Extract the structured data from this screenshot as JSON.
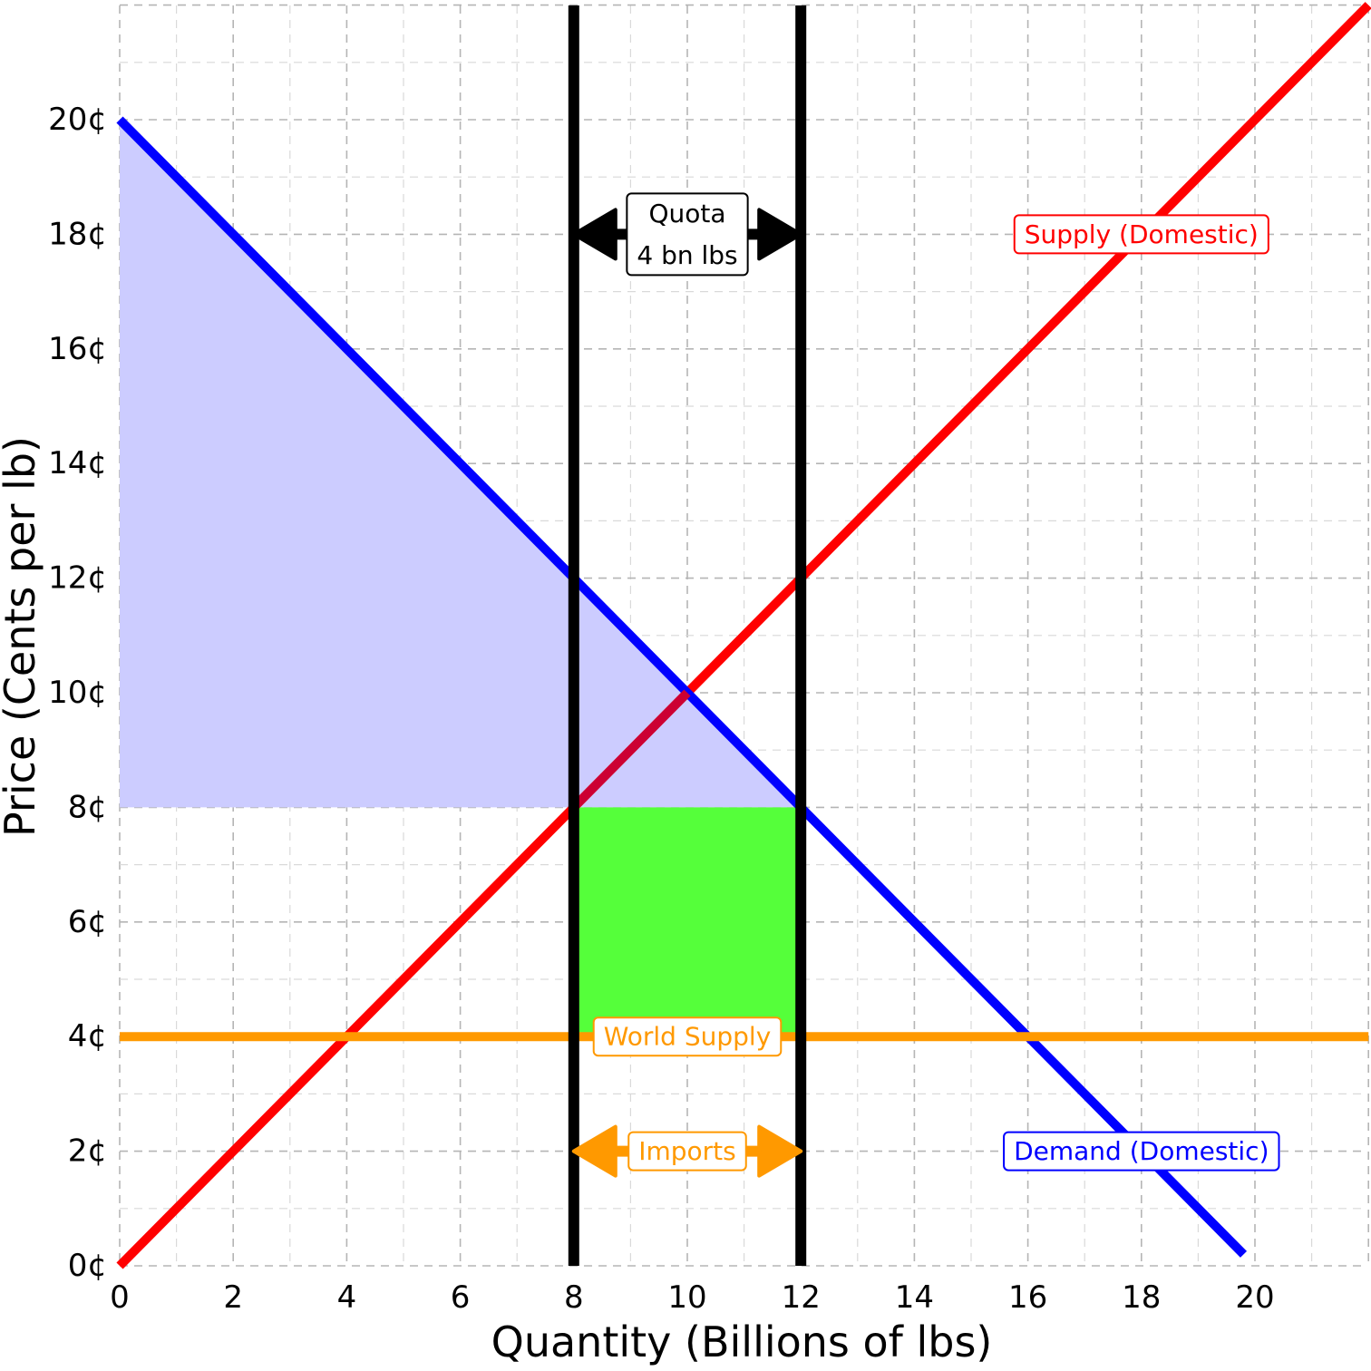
{
  "chart_data": {
    "type": "line",
    "xlabel": "Quantity (Billions of lbs)",
    "ylabel": "Price (Cents per lb)",
    "xlim": [
      0,
      22
    ],
    "ylim": [
      0,
      22
    ],
    "x_ticks": [
      "0",
      "2",
      "4",
      "6",
      "8",
      "10",
      "12",
      "14",
      "16",
      "18",
      "20"
    ],
    "y_ticks": [
      "0¢",
      "2¢",
      "4¢",
      "6¢",
      "8¢",
      "10¢",
      "12¢",
      "14¢",
      "16¢",
      "18¢",
      "20¢"
    ],
    "grid": true,
    "series": [
      {
        "name": "Supply (Domestic)",
        "color": "#ff0000",
        "points": [
          [
            0,
            0
          ],
          [
            22,
            22
          ]
        ]
      },
      {
        "name": "Demand (Domestic)",
        "color": "#0000ff",
        "points": [
          [
            0,
            20
          ],
          [
            19.8,
            0.2
          ]
        ]
      },
      {
        "name": "World Supply",
        "color": "#ff9900",
        "points": [
          [
            0,
            4
          ],
          [
            22,
            4
          ]
        ]
      }
    ],
    "vlines": [
      {
        "x": 8,
        "color": "#000000"
      },
      {
        "x": 12,
        "color": "#000000"
      }
    ],
    "shaded_regions": [
      {
        "color": "#ccccff",
        "polygon": [
          [
            0,
            20
          ],
          [
            12,
            8
          ],
          [
            0,
            8
          ]
        ]
      },
      {
        "color": "#55ff3a",
        "polygon": [
          [
            8,
            4
          ],
          [
            12,
            4
          ],
          [
            12,
            8
          ],
          [
            8,
            8
          ]
        ]
      }
    ],
    "annotations": [
      {
        "text": "Supply (Domestic)",
        "x": 18,
        "y": 18,
        "color": "#ff0000"
      },
      {
        "text": "Demand (Domestic)",
        "x": 18,
        "y": 2,
        "color": "#0000ff"
      },
      {
        "text": "World Supply",
        "x": 10,
        "y": 4,
        "color": "#ff9900"
      },
      {
        "text": "Imports",
        "x": 10,
        "y": 2,
        "color": "#ff9900"
      },
      {
        "text_lines": [
          "Quota",
          "4 bn lbs"
        ],
        "x": 10,
        "y": 18,
        "color": "#000000"
      }
    ],
    "arrows": [
      {
        "from": [
          8,
          18
        ],
        "to": [
          12,
          18
        ],
        "color": "#000000",
        "both_ends": true
      },
      {
        "from": [
          8,
          2
        ],
        "to": [
          12,
          2
        ],
        "color": "#ff9900",
        "both_ends": true
      }
    ]
  }
}
